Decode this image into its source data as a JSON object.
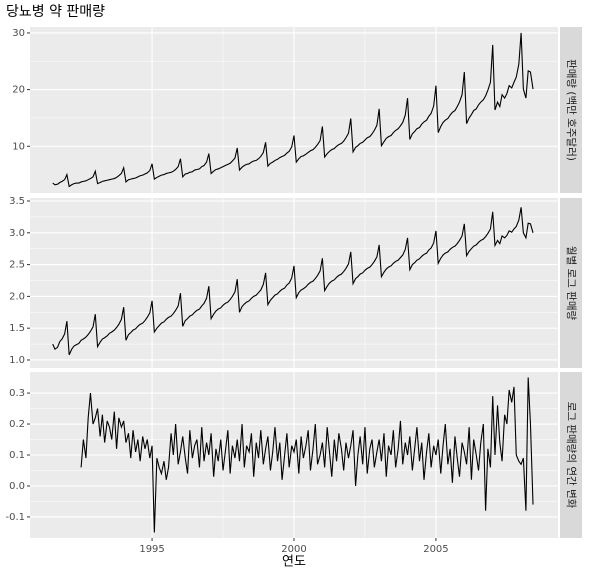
{
  "title": "당뇨병 약 판매량",
  "x_label": "연도",
  "xlim": [
    1990.7,
    2009.3
  ],
  "xticks": [
    1995,
    2000,
    2005
  ],
  "x": [
    1991.5,
    1991.58,
    1991.67,
    1991.75,
    1991.83,
    1991.92,
    1992.0,
    1992.08,
    1992.17,
    1992.25,
    1992.33,
    1992.42,
    1992.5,
    1992.58,
    1992.67,
    1992.75,
    1992.83,
    1992.92,
    1993.0,
    1993.08,
    1993.17,
    1993.25,
    1993.33,
    1993.42,
    1993.5,
    1993.58,
    1993.67,
    1993.75,
    1993.83,
    1993.92,
    1994.0,
    1994.08,
    1994.17,
    1994.25,
    1994.33,
    1994.42,
    1994.5,
    1994.58,
    1994.67,
    1994.75,
    1994.83,
    1994.92,
    1995.0,
    1995.08,
    1995.17,
    1995.25,
    1995.33,
    1995.42,
    1995.5,
    1995.58,
    1995.67,
    1995.75,
    1995.83,
    1995.92,
    1996.0,
    1996.08,
    1996.17,
    1996.25,
    1996.33,
    1996.42,
    1996.5,
    1996.58,
    1996.67,
    1996.75,
    1996.83,
    1996.92,
    1997.0,
    1997.08,
    1997.17,
    1997.25,
    1997.33,
    1997.42,
    1997.5,
    1997.58,
    1997.67,
    1997.75,
    1997.83,
    1997.92,
    1998.0,
    1998.08,
    1998.17,
    1998.25,
    1998.33,
    1998.42,
    1998.5,
    1998.58,
    1998.67,
    1998.75,
    1998.83,
    1998.92,
    1999.0,
    1999.08,
    1999.17,
    1999.25,
    1999.33,
    1999.42,
    1999.5,
    1999.58,
    1999.67,
    1999.75,
    1999.83,
    1999.92,
    2000.0,
    2000.08,
    2000.17,
    2000.25,
    2000.33,
    2000.42,
    2000.5,
    2000.58,
    2000.67,
    2000.75,
    2000.83,
    2000.92,
    2001.0,
    2001.08,
    2001.17,
    2001.25,
    2001.33,
    2001.42,
    2001.5,
    2001.58,
    2001.67,
    2001.75,
    2001.83,
    2001.92,
    2002.0,
    2002.08,
    2002.17,
    2002.25,
    2002.33,
    2002.42,
    2002.5,
    2002.58,
    2002.67,
    2002.75,
    2002.83,
    2002.92,
    2003.0,
    2003.08,
    2003.17,
    2003.25,
    2003.33,
    2003.42,
    2003.5,
    2003.58,
    2003.67,
    2003.75,
    2003.83,
    2003.92,
    2004.0,
    2004.08,
    2004.17,
    2004.25,
    2004.33,
    2004.42,
    2004.5,
    2004.58,
    2004.67,
    2004.75,
    2004.83,
    2004.92,
    2005.0,
    2005.08,
    2005.17,
    2005.25,
    2005.33,
    2005.42,
    2005.5,
    2005.58,
    2005.67,
    2005.75,
    2005.83,
    2005.92,
    2006.0,
    2006.08,
    2006.17,
    2006.25,
    2006.33,
    2006.42,
    2006.5,
    2006.58,
    2006.67,
    2006.75,
    2006.83,
    2006.92,
    2007.0,
    2007.08,
    2007.17,
    2007.25,
    2007.33,
    2007.42,
    2007.5,
    2007.58,
    2007.67,
    2007.75,
    2007.83,
    2007.92,
    2008.0,
    2008.08,
    2008.17,
    2008.25,
    2008.33,
    2008.42
  ],
  "chart_data": [
    {
      "type": "line",
      "strip": "판매량 (백만 호주달러)",
      "color": "#000000",
      "grid": true,
      "ylim": [
        1.75,
        31.05
      ],
      "yticks": [
        10,
        20,
        30
      ],
      "values": [
        3.5,
        3.2,
        3.3,
        3.6,
        3.8,
        4.1,
        5.0,
        2.9,
        3.2,
        3.4,
        3.5,
        3.5,
        3.7,
        3.8,
        3.9,
        4.1,
        4.3,
        4.6,
        5.6,
        3.4,
        3.6,
        3.8,
        3.9,
        4.0,
        4.1,
        4.2,
        4.3,
        4.5,
        4.8,
        5.2,
        6.2,
        3.7,
        4.1,
        4.2,
        4.3,
        4.4,
        4.6,
        4.8,
        4.9,
        5.1,
        5.3,
        5.7,
        6.9,
        4.2,
        4.5,
        4.7,
        4.9,
        5.0,
        5.2,
        5.3,
        5.4,
        5.6,
        5.9,
        6.4,
        7.8,
        4.6,
        5.1,
        5.2,
        5.4,
        5.5,
        5.8,
        5.9,
        6.0,
        6.4,
        6.6,
        7.2,
        8.7,
        5.2,
        5.6,
        5.9,
        6.0,
        6.2,
        6.4,
        6.6,
        6.8,
        7.0,
        7.4,
        7.9,
        9.7,
        5.8,
        6.3,
        6.6,
        6.8,
        6.9,
        7.2,
        7.4,
        7.5,
        7.8,
        8.2,
        8.9,
        10.7,
        6.5,
        7.0,
        7.2,
        7.5,
        7.7,
        8.0,
        8.2,
        8.4,
        8.8,
        9.1,
        9.9,
        11.9,
        7.2,
        7.8,
        8.2,
        8.3,
        8.6,
        8.9,
        9.2,
        9.4,
        9.8,
        10.3,
        11.0,
        13.5,
        8.1,
        8.7,
        9.1,
        9.4,
        9.6,
        10.0,
        10.3,
        10.5,
        10.9,
        11.5,
        12.3,
        14.9,
        9.0,
        9.8,
        10.1,
        10.5,
        10.7,
        11.1,
        11.5,
        11.7,
        12.2,
        12.8,
        13.7,
        16.6,
        10.1,
        10.8,
        11.4,
        11.7,
        11.9,
        12.4,
        12.8,
        13.1,
        13.6,
        14.2,
        15.5,
        18.5,
        11.2,
        12.2,
        12.6,
        13.1,
        13.3,
        13.9,
        14.3,
        14.6,
        15.3,
        15.8,
        17.1,
        20.7,
        12.4,
        13.5,
        14.2,
        14.6,
        14.9,
        15.5,
        16.0,
        16.3,
        17.0,
        17.8,
        19.1,
        23.1,
        14.0,
        15.0,
        15.6,
        16.3,
        16.6,
        17.3,
        17.8,
        18.2,
        18.9,
        19.9,
        21.3,
        27.9,
        16.4,
        17.8,
        17.0,
        19.1,
        18.5,
        19.3,
        20.7,
        20.3,
        21.3,
        22.2,
        24.5,
        30.0,
        20.1,
        18.5,
        23.3,
        23.1,
        20.1
      ]
    },
    {
      "type": "line",
      "strip": "월별 로그 판매량",
      "color": "#000000",
      "grid": true,
      "ylim": [
        0.874,
        3.547
      ],
      "yticks": [
        {
          "value": 1,
          "label": "1.0"
        },
        1.5,
        {
          "value": 2,
          "label": "2.0"
        },
        2.5,
        {
          "value": 3,
          "label": "3.0"
        },
        3.5
      ],
      "values": [
        1.25,
        1.17,
        1.2,
        1.29,
        1.33,
        1.41,
        1.61,
        1.08,
        1.17,
        1.22,
        1.24,
        1.26,
        1.31,
        1.33,
        1.36,
        1.4,
        1.45,
        1.52,
        1.72,
        1.21,
        1.28,
        1.33,
        1.35,
        1.38,
        1.42,
        1.44,
        1.47,
        1.51,
        1.56,
        1.64,
        1.83,
        1.31,
        1.4,
        1.43,
        1.47,
        1.49,
        1.53,
        1.56,
        1.58,
        1.62,
        1.67,
        1.74,
        1.93,
        1.44,
        1.5,
        1.54,
        1.58,
        1.6,
        1.64,
        1.67,
        1.69,
        1.73,
        1.78,
        1.85,
        2.05,
        1.53,
        1.62,
        1.65,
        1.69,
        1.71,
        1.75,
        1.78,
        1.8,
        1.85,
        1.89,
        1.97,
        2.16,
        1.65,
        1.72,
        1.77,
        1.8,
        1.82,
        1.86,
        1.89,
        1.91,
        1.95,
        2.0,
        2.07,
        2.27,
        1.75,
        1.84,
        1.88,
        1.91,
        1.93,
        1.97,
        2.0,
        2.02,
        2.06,
        2.1,
        2.19,
        2.37,
        1.87,
        1.94,
        1.98,
        2.02,
        2.04,
        2.08,
        2.11,
        2.13,
        2.18,
        2.21,
        2.29,
        2.48,
        1.98,
        2.06,
        2.1,
        2.12,
        2.15,
        2.19,
        2.22,
        2.24,
        2.28,
        2.33,
        2.4,
        2.6,
        2.09,
        2.16,
        2.21,
        2.24,
        2.26,
        2.3,
        2.33,
        2.35,
        2.39,
        2.44,
        2.51,
        2.7,
        2.2,
        2.28,
        2.31,
        2.35,
        2.37,
        2.41,
        2.44,
        2.46,
        2.5,
        2.55,
        2.62,
        2.81,
        2.31,
        2.38,
        2.43,
        2.46,
        2.48,
        2.52,
        2.55,
        2.57,
        2.61,
        2.65,
        2.74,
        2.92,
        2.42,
        2.5,
        2.53,
        2.57,
        2.59,
        2.63,
        2.66,
        2.68,
        2.73,
        2.76,
        2.84,
        3.03,
        2.52,
        2.6,
        2.65,
        2.68,
        2.7,
        2.74,
        2.77,
        2.79,
        2.83,
        2.88,
        2.95,
        3.14,
        2.64,
        2.71,
        2.75,
        2.79,
        2.81,
        2.85,
        2.88,
        2.9,
        2.94,
        2.99,
        3.06,
        3.33,
        2.8,
        2.88,
        2.83,
        2.95,
        2.92,
        2.96,
        3.03,
        3.01,
        3.06,
        3.1,
        3.2,
        3.4,
        3.0,
        2.92,
        3.15,
        3.14,
        3.0
      ]
    },
    {
      "type": "line",
      "strip": "로그 판매량의 연간 변화",
      "color": "#000000",
      "grid": true,
      "ylim": [
        -0.168,
        0.368
      ],
      "yticks": [
        -0.1,
        {
          "value": 0,
          "label": "0.0"
        },
        0.1,
        0.2,
        0.3
      ],
      "values": [
        null,
        null,
        null,
        null,
        null,
        null,
        null,
        null,
        null,
        null,
        null,
        null,
        0.06,
        0.15,
        0.09,
        0.22,
        0.3,
        0.2,
        0.22,
        0.25,
        0.16,
        0.23,
        0.14,
        0.21,
        0.19,
        0.15,
        0.24,
        0.12,
        0.22,
        0.19,
        0.21,
        0.14,
        0.17,
        0.09,
        0.18,
        0.11,
        0.15,
        0.08,
        0.16,
        0.12,
        0.15,
        0.09,
        0.13,
        -0.15,
        0.09,
        0.06,
        0.04,
        0.08,
        0.02,
        0.06,
        0.17,
        0.1,
        0.2,
        0.07,
        0.11,
        0.16,
        0.09,
        0.04,
        0.18,
        0.09,
        0.13,
        0.15,
        0.06,
        0.19,
        0.08,
        0.14,
        0.1,
        0.17,
        0.03,
        0.12,
        0.08,
        0.15,
        0.05,
        0.11,
        0.18,
        0.04,
        0.13,
        0.09,
        0.15,
        0.08,
        0.2,
        0.06,
        0.13,
        0.11,
        0.17,
        0.03,
        0.14,
        0.09,
        0.18,
        0.07,
        0.12,
        0.16,
        0.05,
        0.11,
        0.19,
        0.08,
        0.14,
        0.02,
        0.1,
        0.17,
        0.06,
        0.13,
        0.11,
        0.15,
        0.04,
        0.16,
        0.09,
        0.13,
        0.18,
        0.05,
        0.12,
        0.2,
        0.07,
        0.1,
        0.14,
        0.06,
        0.19,
        0.11,
        0.03,
        0.15,
        0.08,
        0.17,
        0.12,
        0.05,
        0.14,
        0.09,
        0.13,
        0.18,
        0.0,
        0.1,
        0.16,
        0.07,
        0.19,
        0.04,
        0.12,
        0.15,
        0.06,
        0.11,
        0.15,
        0.08,
        0.17,
        0.03,
        0.13,
        0.1,
        0.18,
        0.06,
        0.12,
        0.21,
        0.07,
        0.14,
        0.1,
        0.16,
        0.05,
        0.12,
        0.19,
        0.08,
        0.14,
        0.02,
        0.11,
        0.17,
        0.06,
        0.13,
        0.1,
        0.15,
        0.04,
        0.13,
        0.2,
        0.07,
        0.12,
        0.01,
        0.16,
        0.09,
        0.03,
        0.14,
        0.11,
        0.07,
        0.19,
        0.02,
        0.15,
        0.1,
        0.05,
        0.14,
        0.2,
        -0.08,
        0.12,
        0.06,
        0.29,
        0.1,
        0.26,
        0.14,
        0.08,
        0.23,
        0.2,
        0.31,
        0.27,
        0.32,
        0.1,
        0.08,
        0.07,
        0.09,
        -0.08,
        0.35,
        0.2,
        -0.06
      ]
    }
  ]
}
